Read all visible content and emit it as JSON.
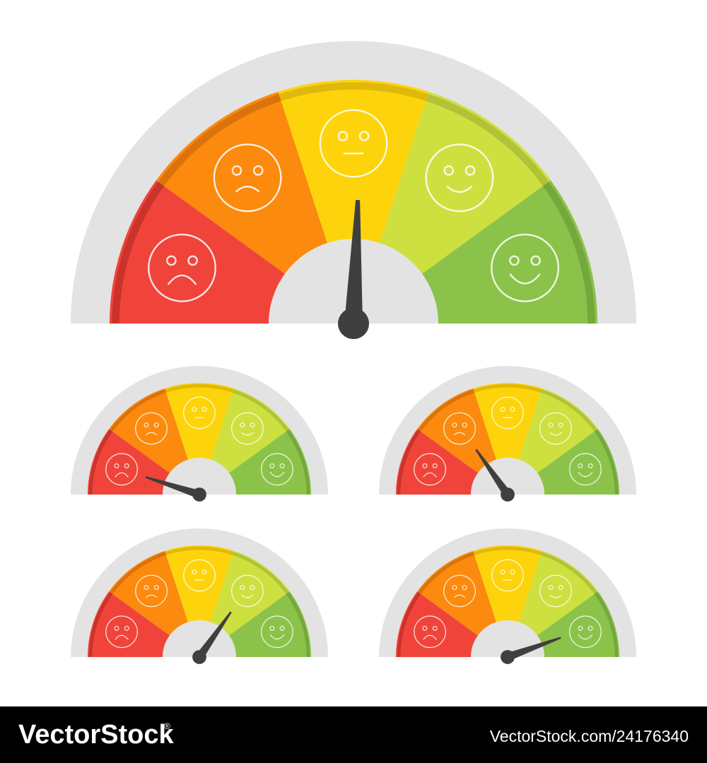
{
  "footer": {
    "brand": "VectorStock",
    "mark": "®",
    "url": "VectorStock.com/24176340"
  }
}
